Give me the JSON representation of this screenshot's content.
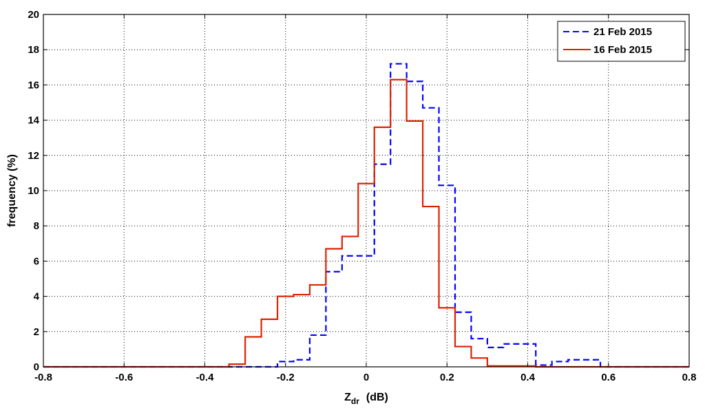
{
  "chart_data": {
    "type": "line",
    "style": "stairs",
    "xlabel_main": "Z",
    "xlabel_sub": "dr",
    "xlabel_unit": "(dB)",
    "ylabel": "frequency  (%)",
    "xlim": [
      -0.8,
      0.8
    ],
    "ylim": [
      0,
      20
    ],
    "xticks": [
      -0.8,
      -0.6,
      -0.4,
      -0.2,
      0,
      0.2,
      0.4,
      0.6,
      0.8
    ],
    "xtick_labels": [
      "-0.8",
      "-0.6",
      "-0.4",
      "-0.2",
      "0",
      "0.2",
      "0.4",
      "0.6",
      "0.8"
    ],
    "yticks": [
      0,
      2,
      4,
      6,
      8,
      10,
      12,
      14,
      16,
      18,
      20
    ],
    "ytick_labels": [
      "0",
      "2",
      "4",
      "6",
      "8",
      "10",
      "12",
      "14",
      "16",
      "18",
      "20"
    ],
    "grid": true,
    "legend_position": "top-right",
    "bin_edges": [
      -0.78,
      -0.74,
      -0.7,
      -0.66,
      -0.62,
      -0.58,
      -0.54,
      -0.5,
      -0.46,
      -0.42,
      -0.38,
      -0.34,
      -0.3,
      -0.26,
      -0.22,
      -0.18,
      -0.14,
      -0.1,
      -0.06,
      -0.02,
      0.02,
      0.06,
      0.1,
      0.14,
      0.18,
      0.22,
      0.26,
      0.3,
      0.34,
      0.38,
      0.42,
      0.46,
      0.5,
      0.54,
      0.58,
      0.62,
      0.66,
      0.7,
      0.74,
      0.78
    ],
    "series": [
      {
        "name": "21 Feb 2015",
        "color": "#0000ff",
        "dash": "dashed",
        "x_start": -0.8,
        "x_end": 0.8,
        "values": [
          0,
          0,
          0,
          0,
          0,
          0,
          0,
          0,
          0,
          0,
          0,
          0,
          0,
          0,
          0.3,
          0.4,
          1.8,
          5.4,
          6.3,
          6.3,
          11.5,
          17.2,
          16.2,
          14.7,
          10.3,
          3.1,
          1.6,
          1.1,
          1.3,
          1.3,
          0.1,
          0.3,
          0.4,
          0.4,
          0,
          0,
          0,
          0,
          0,
          0
        ]
      },
      {
        "name": "16 Feb 2015",
        "color": "#dd2200",
        "dash": "solid",
        "x_start": -0.8,
        "x_end": 0.8,
        "values": [
          0,
          0,
          0,
          0,
          0,
          0,
          0,
          0,
          0,
          0,
          0,
          0.15,
          1.7,
          2.7,
          4.0,
          4.1,
          4.65,
          6.7,
          7.4,
          10.4,
          13.6,
          16.3,
          13.95,
          9.1,
          3.35,
          1.15,
          0.5,
          0.05,
          0.05,
          0.05,
          0,
          0,
          0,
          0,
          0,
          0,
          0,
          0,
          0,
          0
        ]
      }
    ]
  }
}
